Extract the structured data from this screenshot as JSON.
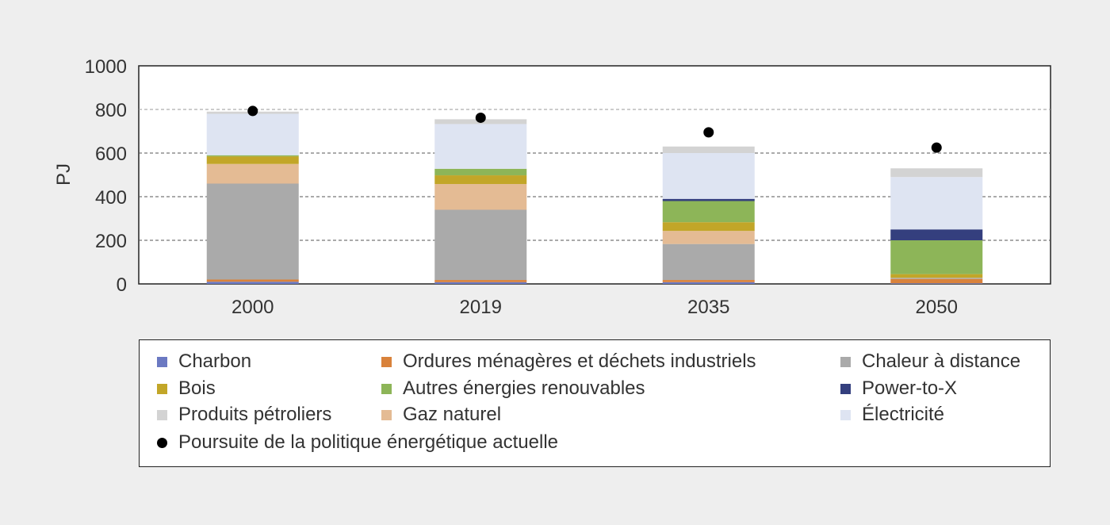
{
  "chart_data": {
    "type": "bar",
    "stacked": true,
    "categories": [
      "2000",
      "2019",
      "2035",
      "2050"
    ],
    "ylabel": "PJ",
    "ylim": [
      0,
      1000
    ],
    "yticks": [
      0,
      200,
      400,
      600,
      800,
      1000
    ],
    "grid": "horizontal dashed",
    "legend_position": "bottom",
    "series": [
      {
        "name": "Charbon",
        "color": "#6b79c2",
        "values": [
          10,
          8,
          8,
          3
        ]
      },
      {
        "name": "Ordures ménagères et déchets industriels",
        "color": "#d9823b",
        "values": [
          10,
          10,
          10,
          20
        ]
      },
      {
        "name": "Chaleur à distance",
        "color": "#aaaaaa",
        "values": [
          440,
          322,
          165,
          5
        ]
      },
      {
        "name": "Gaz naturel",
        "color": "#e4bb94",
        "values": [
          90,
          118,
          60,
          0
        ]
      },
      {
        "name": "Bois",
        "color": "#c2a628",
        "values": [
          35,
          40,
          40,
          17
        ]
      },
      {
        "name": "Autres énergies renouvables",
        "color": "#8db558",
        "values": [
          5,
          30,
          97,
          155
        ]
      },
      {
        "name": "Power-to-X",
        "color": "#343f7e",
        "values": [
          0,
          0,
          10,
          50
        ]
      },
      {
        "name": "Électricité",
        "color": "#dee4f2",
        "values": [
          190,
          205,
          210,
          240
        ]
      },
      {
        "name": "Produits pétroliers",
        "color": "#d3d3d3",
        "values": [
          10,
          22,
          30,
          40
        ]
      }
    ],
    "markers": {
      "name": "Poursuite de la politique énergétique actuelle",
      "color": "#000000",
      "values": [
        793,
        762,
        695,
        625
      ]
    }
  },
  "legend": {
    "items": [
      {
        "label": "Charbon",
        "color": "#6b79c2",
        "shape": "square"
      },
      {
        "label": "Ordures ménagères et déchets industriels",
        "color": "#d9823b",
        "shape": "square"
      },
      {
        "label": "Chaleur à distance",
        "color": "#aaaaaa",
        "shape": "square"
      },
      {
        "label": "Bois",
        "color": "#c2a628",
        "shape": "square"
      },
      {
        "label": "Autres énergies renouvables",
        "color": "#8db558",
        "shape": "square"
      },
      {
        "label": "Power-to-X",
        "color": "#343f7e",
        "shape": "square"
      },
      {
        "label": "Produits pétroliers",
        "color": "#d3d3d3",
        "shape": "square"
      },
      {
        "label": "Gaz naturel",
        "color": "#e4bb94",
        "shape": "square"
      },
      {
        "label": "Électricité",
        "color": "#dee4f2",
        "shape": "square"
      },
      {
        "label": "Poursuite de la politique énergétique actuelle",
        "color": "#000000",
        "shape": "dot"
      }
    ]
  }
}
